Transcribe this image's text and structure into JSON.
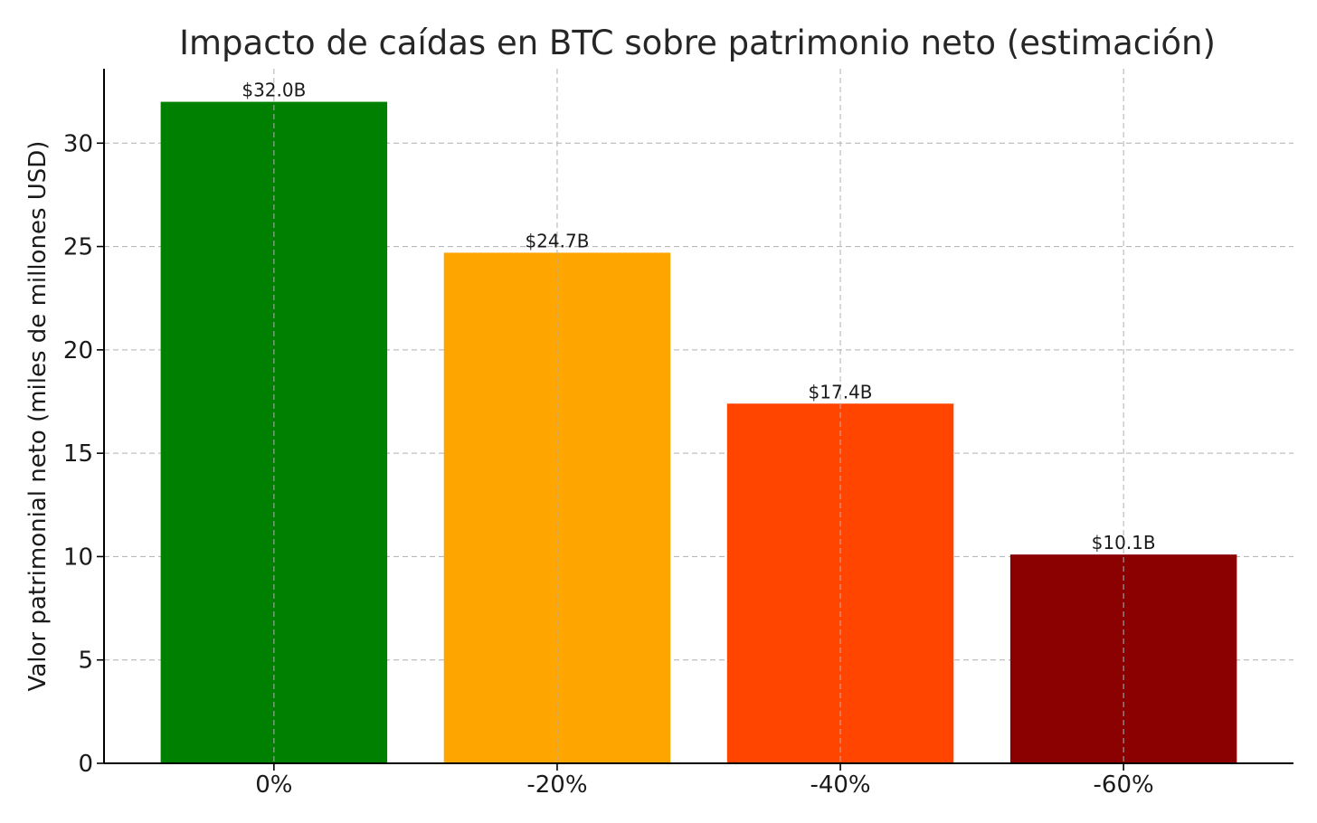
{
  "chart_data": {
    "type": "bar",
    "title": "Impacto de caídas en BTC sobre patrimonio neto (estimación)",
    "xlabel": "",
    "ylabel": "Valor patrimonial neto (miles de millones USD)",
    "categories": [
      "0%",
      "-20%",
      "-40%",
      "-60%"
    ],
    "values": [
      32.0,
      24.7,
      17.4,
      10.1
    ],
    "data_labels": [
      "$32.0B",
      "$24.7B",
      "$17.4B",
      "$10.1B"
    ],
    "colors": [
      "#008000",
      "#FFA500",
      "#FF4500",
      "#8B0000"
    ],
    "ylim": [
      0,
      33.6
    ],
    "yticks": [
      0,
      5,
      10,
      15,
      20,
      25,
      30
    ],
    "ytick_labels": [
      "0",
      "5",
      "10",
      "15",
      "20",
      "25",
      "30"
    ],
    "grid": true,
    "legend": "none"
  }
}
